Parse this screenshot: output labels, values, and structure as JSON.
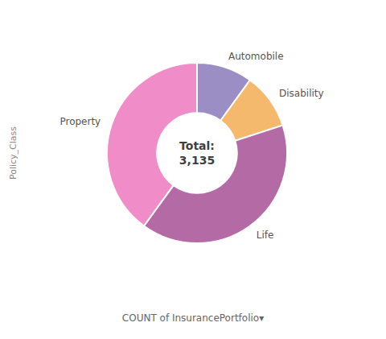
{
  "chart_data": {
    "type": "pie",
    "categories": [
      "Automobile",
      "Disability",
      "Life",
      "Property"
    ],
    "values": [
      314,
      314,
      1254,
      1253
    ],
    "colors": [
      "#9b8ec4",
      "#f5b96e",
      "#b36aa5",
      "#f08cc8"
    ],
    "annotations": [
      "Total:",
      "3,135"
    ],
    "xlabel": "COUNT of InsurancePortfolio▾",
    "ylabel": "Policy_Class"
  }
}
